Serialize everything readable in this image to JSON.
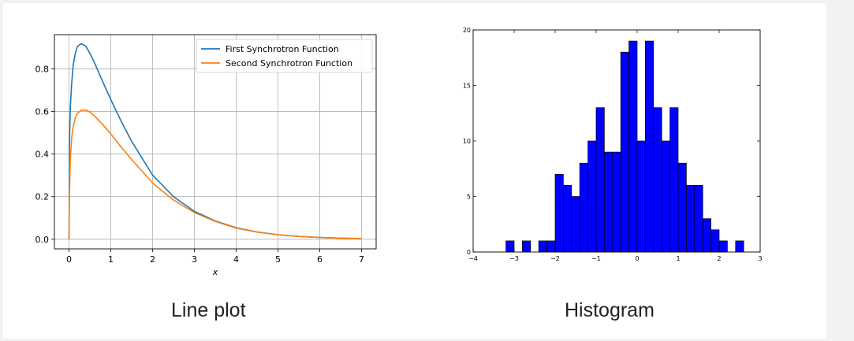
{
  "captions": {
    "line_plot": "Line plot",
    "histogram": "Histogram"
  },
  "chart_data": [
    {
      "type": "line",
      "title": "",
      "xlabel": "x",
      "ylabel": "",
      "xlim": [
        -0.35,
        7.35
      ],
      "ylim": [
        -0.045,
        0.96
      ],
      "xticks": [
        0,
        1,
        2,
        3,
        4,
        5,
        6,
        7
      ],
      "yticks": [
        0.0,
        0.2,
        0.4,
        0.6,
        0.8
      ],
      "ytick_labels": [
        "0.0",
        "0.2",
        "0.4",
        "0.6",
        "0.8"
      ],
      "grid": true,
      "legend_position": "top-right",
      "x": [
        0,
        0.01,
        0.03,
        0.06,
        0.1,
        0.15,
        0.2,
        0.29,
        0.4,
        0.5,
        0.6,
        0.8,
        1.0,
        1.25,
        1.5,
        2.0,
        2.5,
        3.0,
        3.5,
        4.0,
        4.5,
        5.0,
        5.5,
        6.0,
        6.5,
        7.0
      ],
      "series": [
        {
          "name": "First Synchrotron Function",
          "color": "#1f77b4",
          "values": [
            0,
            0.445,
            0.615,
            0.722,
            0.818,
            0.872,
            0.904,
            0.918,
            0.906,
            0.872,
            0.832,
            0.742,
            0.655,
            0.553,
            0.459,
            0.301,
            0.2,
            0.131,
            0.086,
            0.0536,
            0.0341,
            0.0215,
            0.0133,
            0.0084,
            0.0052,
            0.0032
          ]
        },
        {
          "name": "Second Synchrotron Function",
          "color": "#ff7f0e",
          "values": [
            0,
            0.21,
            0.37,
            0.47,
            0.53,
            0.57,
            0.59,
            0.605,
            0.607,
            0.597,
            0.58,
            0.54,
            0.494,
            0.432,
            0.374,
            0.264,
            0.184,
            0.125,
            0.084,
            0.052,
            0.0335,
            0.0212,
            0.0133,
            0.0084,
            0.0052,
            0.0032
          ]
        }
      ]
    },
    {
      "type": "bar",
      "title": "",
      "xlabel": "",
      "ylabel": "",
      "xlim": [
        -4,
        3
      ],
      "ylim": [
        0,
        20
      ],
      "xticks": [
        -4,
        -3,
        -2,
        -1,
        0,
        1,
        2,
        3
      ],
      "xtick_labels": [
        "−4",
        "−3",
        "−2",
        "−1",
        "0",
        "1",
        "2",
        "3"
      ],
      "yticks": [
        0,
        5,
        10,
        15,
        20
      ],
      "grid": false,
      "bar_color": "#0000ff",
      "bin_width": 0.2,
      "bin_starts": [
        -3.2,
        -2.8,
        -2.4,
        -2.2,
        -2.0,
        -1.8,
        -1.6,
        -1.4,
        -1.2,
        -1.0,
        -0.8,
        -0.6,
        -0.4,
        -0.2,
        0.0,
        0.2,
        0.4,
        0.6,
        0.8,
        1.0,
        1.2,
        1.4,
        1.6,
        1.8,
        2.0,
        2.4
      ],
      "counts": [
        1,
        1,
        1,
        1,
        7,
        6,
        5,
        8,
        10,
        13,
        9,
        9,
        18,
        19,
        10,
        19,
        13,
        10,
        13,
        8,
        6,
        6,
        3,
        2,
        1,
        1
      ]
    }
  ]
}
